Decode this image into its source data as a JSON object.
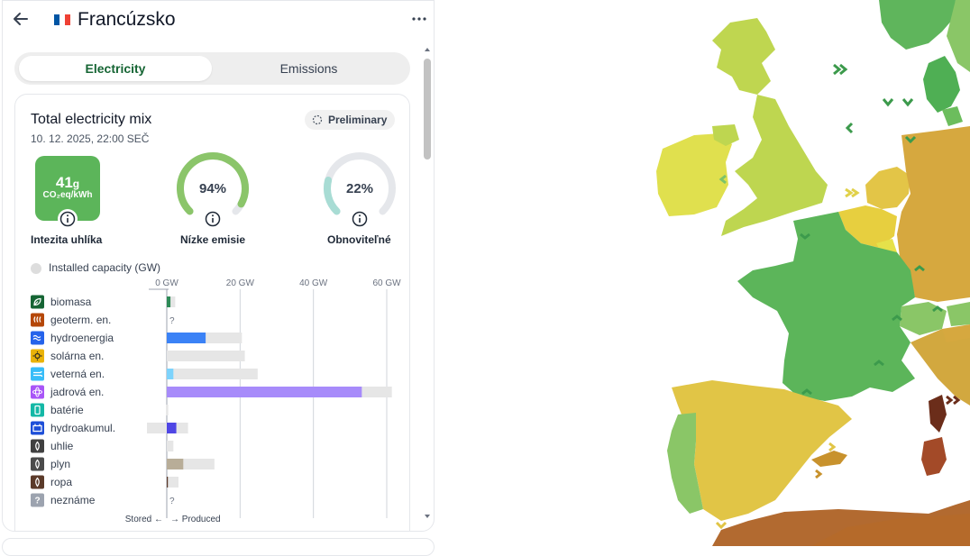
{
  "header": {
    "country_name": "Francúzsko",
    "flag_colors": [
      "#0055a4",
      "#ffffff",
      "#ef4135"
    ]
  },
  "tabs": [
    {
      "label": "Electricity",
      "active": true
    },
    {
      "label": "Emissions",
      "active": false
    }
  ],
  "card": {
    "title": "Total electricity mix",
    "date": "10. 12. 2025, 22:00 SEČ",
    "status_badge": "Preliminary"
  },
  "metrics": {
    "carbon_intensity": {
      "value": "41",
      "unit": "g",
      "sub": "CO₂eq/kWh",
      "label": "Intezita uhlíka",
      "color": "#5cb55a"
    },
    "low_emission": {
      "value": "94%",
      "fraction": 0.94,
      "label": "Nízke emisie",
      "color": "#8bc56a"
    },
    "renewable": {
      "value": "22%",
      "fraction": 0.22,
      "label": "Obnoviteľné",
      "color": "#a8dcd4"
    }
  },
  "capacity_legend": "Installed capacity (GW)",
  "chart_data": {
    "type": "bar",
    "orientation": "horizontal",
    "x_ticks": [
      "0 GW",
      "20 GW",
      "40 GW",
      "60 GW"
    ],
    "xlim": [
      0,
      60
    ],
    "footer_stored": "Stored",
    "footer_produced": "Produced",
    "sources": [
      {
        "name": "biomasa",
        "icon": "leaf-icon",
        "icon_color": "#166534",
        "bar_color": "#2e8b57",
        "produced": 1.0,
        "capacity": 2.3,
        "stored": 0,
        "stored_capacity": 0,
        "unknown": false
      },
      {
        "name": "geoterm. en.",
        "icon": "heat-icon",
        "icon_color": "#b54708",
        "bar_color": "#c2410c",
        "produced": 0,
        "capacity": 0,
        "stored": 0,
        "stored_capacity": 0,
        "unknown": true
      },
      {
        "name": "hydroenergia",
        "icon": "wave-icon",
        "icon_color": "#2563eb",
        "bar_color": "#3b82f6",
        "produced": 10.6,
        "capacity": 20.5,
        "stored": 0,
        "stored_capacity": 0,
        "unknown": false
      },
      {
        "name": "solárna en.",
        "icon": "sun-icon",
        "icon_color": "#eab308",
        "bar_color": "#facc15",
        "produced": 0,
        "capacity": 21.3,
        "stored": 0,
        "stored_capacity": 0,
        "unknown": false
      },
      {
        "name": "veterná en.",
        "icon": "wind-icon",
        "icon_color": "#38bdf8",
        "bar_color": "#7dd3fc",
        "produced": 1.8,
        "capacity": 24.8,
        "stored": 0,
        "stored_capacity": 0,
        "unknown": false
      },
      {
        "name": "jadrová en.",
        "icon": "atom-icon",
        "icon_color": "#a855f7",
        "bar_color": "#a78bfa",
        "produced": 53.2,
        "capacity": 61.4,
        "stored": 0,
        "stored_capacity": 0,
        "unknown": false
      },
      {
        "name": "batérie",
        "icon": "battery-icon",
        "icon_color": "#14b8a6",
        "bar_color": "#0d9488",
        "produced": 0,
        "capacity": 0.4,
        "stored": 0,
        "stored_capacity": 0.2,
        "unknown": false
      },
      {
        "name": "hydroakumul.",
        "icon": "reservoir-icon",
        "icon_color": "#1d4ed8",
        "bar_color": "#4f46e5",
        "produced": 2.6,
        "capacity": 5.8,
        "stored": 0,
        "stored_capacity": 5.4,
        "unknown": false
      },
      {
        "name": "uhlie",
        "icon": "coal-icon",
        "icon_color": "#404040",
        "bar_color": "#525252",
        "produced": 0,
        "capacity": 1.8,
        "stored": 0,
        "stored_capacity": 0,
        "unknown": false
      },
      {
        "name": "plyn",
        "icon": "gas-icon",
        "icon_color": "#4b4b4b",
        "bar_color": "#b8ad98",
        "produced": 4.5,
        "capacity": 13.0,
        "stored": 0,
        "stored_capacity": 0,
        "unknown": false
      },
      {
        "name": "ropa",
        "icon": "oil-icon",
        "icon_color": "#5b3a29",
        "bar_color": "#5b3a29",
        "produced": 0.3,
        "capacity": 3.2,
        "stored": 0,
        "stored_capacity": 0,
        "unknown": false
      },
      {
        "name": "neznáme",
        "icon": "question-icon",
        "icon_color": "#9ca3af",
        "bar_color": "#9ca3af",
        "produced": 0,
        "capacity": 0,
        "stored": 0,
        "stored_capacity": 0,
        "unknown": true
      }
    ]
  }
}
